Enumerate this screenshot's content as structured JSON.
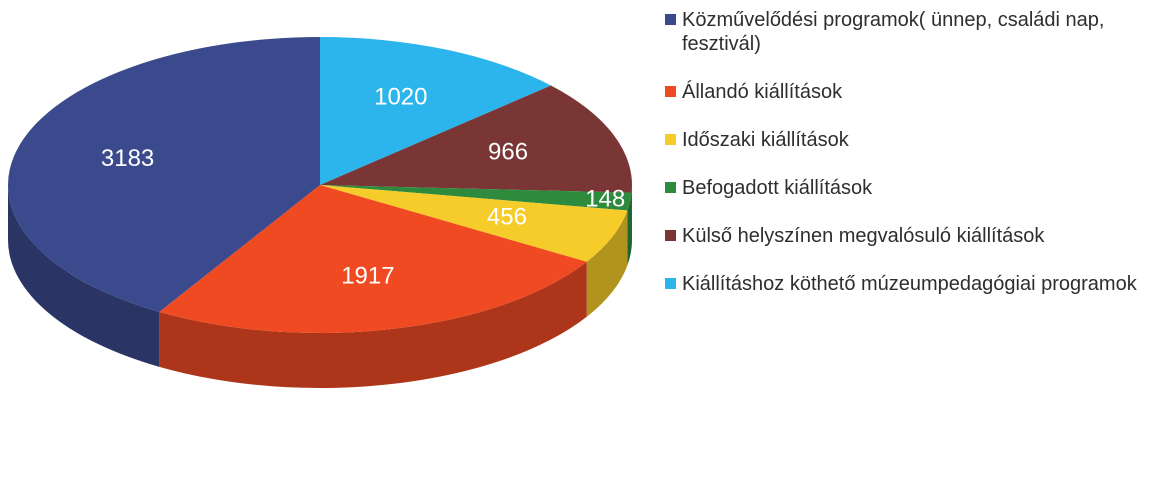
{
  "chart_data": {
    "type": "pie",
    "categories": [
      "Közművelődési programok( ünnep, családi nap, fesztivál)",
      "Állandó kiállítások",
      "Időszaki kiállítások",
      "Befogadott kiállítások",
      "Külső helyszínen megvalósuló kiállítások",
      "Kiállításhoz köthető múzeumpedagógiai programok"
    ],
    "values": [
      3183,
      1917,
      456,
      148,
      966,
      1020
    ],
    "colors": [
      "#3b4a8c",
      "#f04a23",
      "#f6cc2a",
      "#2e8b3e",
      "#7a3535",
      "#2bb5ec"
    ],
    "legend": "right"
  }
}
